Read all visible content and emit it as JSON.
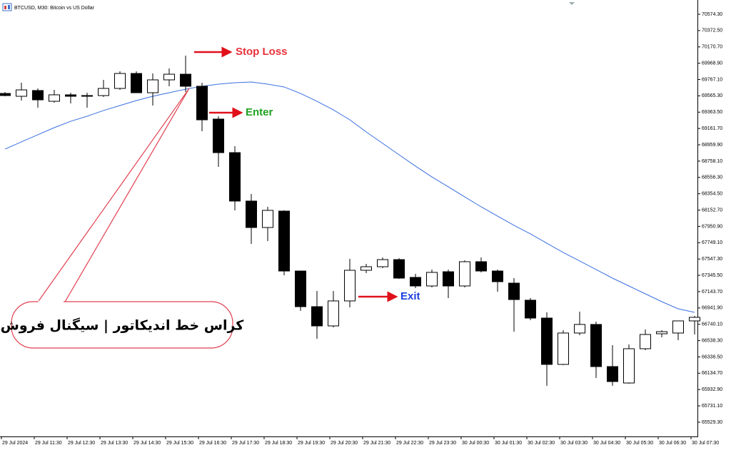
{
  "chart_data": {
    "type": "candlestick",
    "title": "BTCUSD, M30: Bitcoin vs US Dollar",
    "categories": [
      "29 Jul 2024",
      null,
      "29 Jul 11:30",
      null,
      "29 Jul 12:30",
      null,
      "29 Jul 13:30",
      null,
      "29 Jul 14:30",
      null,
      "29 Jul 15:30",
      null,
      "29 Jul 16:30",
      null,
      "29 Jul 17:30",
      null,
      "29 Jul 18:30",
      null,
      "29 Jul 19:30",
      null,
      "29 Jul 20:30",
      null,
      "29 Jul 21:30",
      null,
      "29 Jul 22:30",
      null,
      "29 Jul 23:30",
      null,
      "30 Jul 00:30",
      null,
      "30 Jul 01:30",
      null,
      "30 Jul 02:30",
      null,
      "30 Jul 03:30",
      null,
      "30 Jul 04:30",
      null,
      "30 Jul 05:30",
      null,
      "30 Jul 06:30",
      null,
      "30 Jul 07:30"
    ],
    "open": [
      69595,
      69560,
      69631,
      69498,
      69578,
      69569,
      69569,
      69657,
      69842,
      69604,
      69763,
      69833,
      69684,
      69278,
      68863,
      68264,
      67937,
      68140,
      67399,
      66958,
      66720,
      67029,
      67408,
      67452,
      67540,
      67320,
      67214,
      67390,
      67214,
      67514,
      67399,
      67249,
      67038,
      66817,
      66244,
      66632,
      66738,
      66217,
      66014,
      66438,
      66623,
      66632,
      66782
    ],
    "high": [
      69613,
      69728,
      69657,
      69639,
      69604,
      69604,
      69763,
      69869,
      69869,
      69842,
      69904,
      70063,
      69728,
      69313,
      68943,
      68352,
      68193,
      68149,
      67399,
      67152,
      67152,
      67549,
      67487,
      67567,
      67558,
      67364,
      67417,
      67417,
      67531,
      67567,
      67417,
      67311,
      67064,
      66888,
      66667,
      66896,
      66773,
      66482,
      66491,
      66676,
      66667,
      66782,
      66843
    ],
    "low": [
      69560,
      69507,
      69419,
      69481,
      69472,
      69419,
      69551,
      69639,
      69604,
      69445,
      69684,
      69613,
      69128,
      68687,
      68149,
      67734,
      67770,
      67346,
      66905,
      66561,
      66702,
      66949,
      67373,
      67434,
      67302,
      67187,
      67196,
      67064,
      67196,
      67382,
      67143,
      66649,
      66791,
      65979,
      66235,
      66605,
      66076,
      65979,
      66006,
      66420,
      66579,
      66544,
      66614
    ],
    "close": [
      69569,
      69639,
      69516,
      69578,
      69560,
      69560,
      69657,
      69842,
      69604,
      69763,
      69833,
      69684,
      69269,
      68863,
      68264,
      67937,
      68149,
      67399,
      66958,
      66720,
      67029,
      67408,
      67452,
      67540,
      67311,
      67214,
      67382,
      67214,
      67514,
      67399,
      67267,
      67046,
      66817,
      66244,
      66632,
      66738,
      66217,
      66032,
      66438,
      66614,
      66649,
      66782,
      66826
    ],
    "up_color": "#ffffff",
    "down_color": "#000000",
    "line": {
      "color": "#3a6fe0",
      "values": [
        68907,
        68996,
        69084,
        69172,
        69251,
        69313,
        69384,
        69445,
        69507,
        69560,
        69604,
        69648,
        69684,
        69710,
        69728,
        69736,
        69710,
        69675,
        69595,
        69498,
        69392,
        69269,
        69119,
        68978,
        68837,
        68696,
        68563,
        68440,
        68316,
        68193,
        68078,
        67964,
        67858,
        67743,
        67628,
        67523,
        67417,
        67311,
        67214,
        67117,
        67020,
        66932,
        66888
      ]
    },
    "ylim": [
      65352.9,
      70750.7
    ],
    "yticks": [
      {
        "value": 70574.3,
        "label": "70574.30"
      },
      {
        "value": 70372.5,
        "label": "70372.50"
      },
      {
        "value": 70170.7,
        "label": "70170.70"
      },
      {
        "value": 69968.9,
        "label": "69968.90"
      },
      {
        "value": 69767.1,
        "label": "69767.10"
      },
      {
        "value": 69565.3,
        "label": "69565.30"
      },
      {
        "value": 69363.5,
        "label": "69363.50"
      },
      {
        "value": 69161.7,
        "label": "69161.70"
      },
      {
        "value": 68959.9,
        "label": "68959.90"
      },
      {
        "value": 68758.1,
        "label": "68758.10"
      },
      {
        "value": 68556.3,
        "label": "68556.30"
      },
      {
        "value": 68354.5,
        "label": "68354.50"
      },
      {
        "value": 68152.7,
        "label": "68152.70"
      },
      {
        "value": 67950.9,
        "label": "67950.90"
      },
      {
        "value": 67749.1,
        "label": "67749.10"
      },
      {
        "value": 67547.3,
        "label": "67547.30"
      },
      {
        "value": 67345.5,
        "label": "67345.50"
      },
      {
        "value": 67143.7,
        "label": "67143.70"
      },
      {
        "value": 66941.9,
        "label": "66941.90"
      },
      {
        "value": 66740.1,
        "label": "66740.10"
      },
      {
        "value": 66538.3,
        "label": "66538.30"
      },
      {
        "value": 66336.5,
        "label": "66336.50"
      },
      {
        "value": 66134.7,
        "label": "66134.70"
      },
      {
        "value": 65932.9,
        "label": "65932.90"
      },
      {
        "value": 65731.1,
        "label": "65731.10"
      },
      {
        "value": 65529.3,
        "label": "65529.30"
      }
    ],
    "annotations": [
      {
        "text": "Stop Loss",
        "color": "#e8303a"
      },
      {
        "text": "Enter",
        "color": "#1fa01f"
      },
      {
        "text": "Exit",
        "color": "#1f3fe0"
      }
    ],
    "callout": "کراس خط اندیکاتور | سیگنال فروش"
  }
}
